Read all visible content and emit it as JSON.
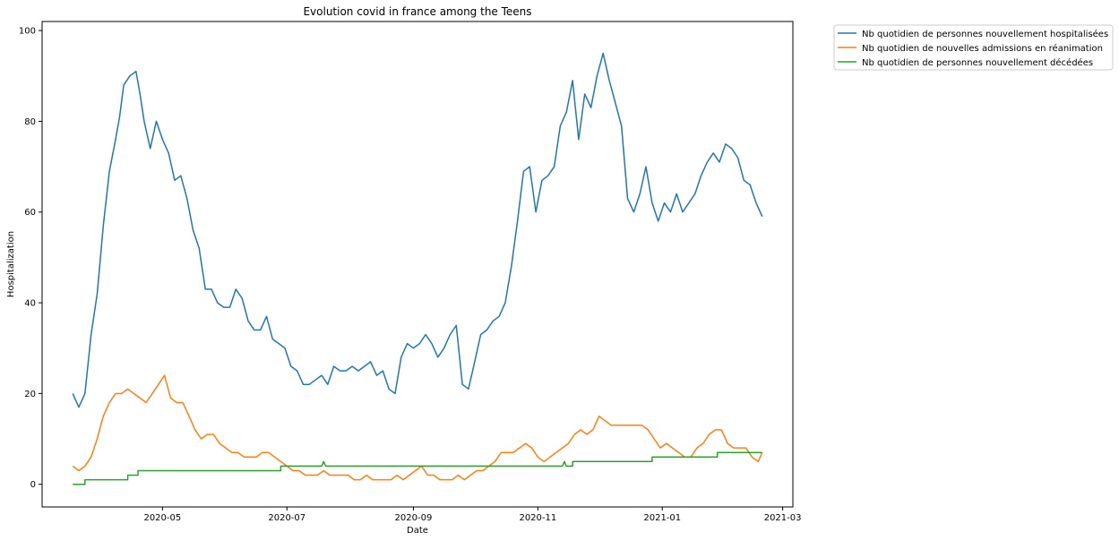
{
  "chart_data": {
    "type": "line",
    "title": "Evolution covid in france among the Teens",
    "xlabel": "Date",
    "ylabel": "Hospitalization",
    "x_start": "2020-03-18",
    "x_end": "2021-02-19",
    "xlim": [
      "2020-03-03",
      "2021-03-06"
    ],
    "ylim": [
      -5,
      102
    ],
    "x_ticks": [
      "2020-05",
      "2020-07",
      "2020-09",
      "2020-11",
      "2021-01",
      "2021-03"
    ],
    "y_ticks": [
      0,
      20,
      40,
      60,
      80,
      100
    ],
    "grid": false,
    "legend_position": "outside-top-right",
    "series": [
      {
        "name": "Nb quotidien de personnes nouvellement hospitalisées",
        "color": "#1f77b4",
        "points": [
          [
            "2020-03-18",
            20
          ],
          [
            "2020-03-21",
            17
          ],
          [
            "2020-03-24",
            20
          ],
          [
            "2020-03-27",
            33
          ],
          [
            "2020-03-30",
            42
          ],
          [
            "2020-04-02",
            57
          ],
          [
            "2020-04-05",
            69
          ],
          [
            "2020-04-08",
            76
          ],
          [
            "2020-04-10",
            81
          ],
          [
            "2020-04-12",
            88
          ],
          [
            "2020-04-15",
            90
          ],
          [
            "2020-04-18",
            91
          ],
          [
            "2020-04-20",
            86
          ],
          [
            "2020-04-22",
            80
          ],
          [
            "2020-04-25",
            74
          ],
          [
            "2020-04-28",
            80
          ],
          [
            "2020-05-01",
            76
          ],
          [
            "2020-05-04",
            73
          ],
          [
            "2020-05-07",
            67
          ],
          [
            "2020-05-10",
            68
          ],
          [
            "2020-05-13",
            63
          ],
          [
            "2020-05-16",
            56
          ],
          [
            "2020-05-19",
            52
          ],
          [
            "2020-05-22",
            43
          ],
          [
            "2020-05-25",
            43
          ],
          [
            "2020-05-28",
            40
          ],
          [
            "2020-05-31",
            39
          ],
          [
            "2020-06-03",
            39
          ],
          [
            "2020-06-06",
            43
          ],
          [
            "2020-06-09",
            41
          ],
          [
            "2020-06-12",
            36
          ],
          [
            "2020-06-15",
            34
          ],
          [
            "2020-06-18",
            34
          ],
          [
            "2020-06-21",
            37
          ],
          [
            "2020-06-24",
            32
          ],
          [
            "2020-06-27",
            31
          ],
          [
            "2020-06-30",
            30
          ],
          [
            "2020-07-03",
            26
          ],
          [
            "2020-07-06",
            25
          ],
          [
            "2020-07-09",
            22
          ],
          [
            "2020-07-12",
            22
          ],
          [
            "2020-07-15",
            23
          ],
          [
            "2020-07-18",
            24
          ],
          [
            "2020-07-21",
            22
          ],
          [
            "2020-07-24",
            26
          ],
          [
            "2020-07-27",
            25
          ],
          [
            "2020-07-30",
            25
          ],
          [
            "2020-08-02",
            26
          ],
          [
            "2020-08-05",
            25
          ],
          [
            "2020-08-08",
            26
          ],
          [
            "2020-08-11",
            27
          ],
          [
            "2020-08-14",
            24
          ],
          [
            "2020-08-17",
            25
          ],
          [
            "2020-08-20",
            21
          ],
          [
            "2020-08-23",
            20
          ],
          [
            "2020-08-26",
            28
          ],
          [
            "2020-08-29",
            31
          ],
          [
            "2020-09-01",
            30
          ],
          [
            "2020-09-04",
            31
          ],
          [
            "2020-09-07",
            33
          ],
          [
            "2020-09-10",
            31
          ],
          [
            "2020-09-13",
            28
          ],
          [
            "2020-09-16",
            30
          ],
          [
            "2020-09-19",
            33
          ],
          [
            "2020-09-22",
            35
          ],
          [
            "2020-09-25",
            22
          ],
          [
            "2020-09-28",
            21
          ],
          [
            "2020-10-01",
            27
          ],
          [
            "2020-10-04",
            33
          ],
          [
            "2020-10-07",
            34
          ],
          [
            "2020-10-10",
            36
          ],
          [
            "2020-10-13",
            37
          ],
          [
            "2020-10-16",
            40
          ],
          [
            "2020-10-19",
            48
          ],
          [
            "2020-10-22",
            58
          ],
          [
            "2020-10-25",
            69
          ],
          [
            "2020-10-28",
            70
          ],
          [
            "2020-10-31",
            60
          ],
          [
            "2020-11-03",
            67
          ],
          [
            "2020-11-06",
            68
          ],
          [
            "2020-11-09",
            70
          ],
          [
            "2020-11-12",
            79
          ],
          [
            "2020-11-15",
            82
          ],
          [
            "2020-11-18",
            89
          ],
          [
            "2020-11-21",
            76
          ],
          [
            "2020-11-24",
            86
          ],
          [
            "2020-11-27",
            83
          ],
          [
            "2020-11-30",
            90
          ],
          [
            "2020-12-03",
            95
          ],
          [
            "2020-12-06",
            89
          ],
          [
            "2020-12-09",
            84
          ],
          [
            "2020-12-12",
            79
          ],
          [
            "2020-12-15",
            63
          ],
          [
            "2020-12-18",
            60
          ],
          [
            "2020-12-21",
            64
          ],
          [
            "2020-12-24",
            70
          ],
          [
            "2020-12-27",
            62
          ],
          [
            "2020-12-30",
            58
          ],
          [
            "2021-01-02",
            62
          ],
          [
            "2021-01-05",
            60
          ],
          [
            "2021-01-08",
            64
          ],
          [
            "2021-01-11",
            60
          ],
          [
            "2021-01-14",
            62
          ],
          [
            "2021-01-17",
            64
          ],
          [
            "2021-01-20",
            68
          ],
          [
            "2021-01-23",
            71
          ],
          [
            "2021-01-26",
            73
          ],
          [
            "2021-01-29",
            71
          ],
          [
            "2021-02-01",
            75
          ],
          [
            "2021-02-04",
            74
          ],
          [
            "2021-02-07",
            72
          ],
          [
            "2021-02-10",
            67
          ],
          [
            "2021-02-13",
            66
          ],
          [
            "2021-02-16",
            62
          ],
          [
            "2021-02-19",
            59
          ]
        ]
      },
      {
        "name": "Nb quotidien de nouvelles admissions en réanimation",
        "color": "#ff7f0e",
        "points": [
          [
            "2020-03-18",
            4
          ],
          [
            "2020-03-21",
            3
          ],
          [
            "2020-03-24",
            4
          ],
          [
            "2020-03-27",
            6
          ],
          [
            "2020-03-30",
            10
          ],
          [
            "2020-04-02",
            15
          ],
          [
            "2020-04-05",
            18
          ],
          [
            "2020-04-08",
            20
          ],
          [
            "2020-04-11",
            20
          ],
          [
            "2020-04-14",
            21
          ],
          [
            "2020-04-17",
            20
          ],
          [
            "2020-04-20",
            19
          ],
          [
            "2020-04-23",
            18
          ],
          [
            "2020-04-26",
            20
          ],
          [
            "2020-04-29",
            22
          ],
          [
            "2020-05-02",
            24
          ],
          [
            "2020-05-05",
            19
          ],
          [
            "2020-05-08",
            18
          ],
          [
            "2020-05-11",
            18
          ],
          [
            "2020-05-14",
            15
          ],
          [
            "2020-05-17",
            12
          ],
          [
            "2020-05-20",
            10
          ],
          [
            "2020-05-23",
            11
          ],
          [
            "2020-05-26",
            11
          ],
          [
            "2020-05-29",
            9
          ],
          [
            "2020-06-01",
            8
          ],
          [
            "2020-06-04",
            7
          ],
          [
            "2020-06-07",
            7
          ],
          [
            "2020-06-10",
            6
          ],
          [
            "2020-06-13",
            6
          ],
          [
            "2020-06-16",
            6
          ],
          [
            "2020-06-19",
            7
          ],
          [
            "2020-06-22",
            7
          ],
          [
            "2020-06-25",
            6
          ],
          [
            "2020-06-28",
            5
          ],
          [
            "2020-07-01",
            4
          ],
          [
            "2020-07-04",
            3
          ],
          [
            "2020-07-07",
            3
          ],
          [
            "2020-07-10",
            2
          ],
          [
            "2020-07-13",
            2
          ],
          [
            "2020-07-16",
            2
          ],
          [
            "2020-07-19",
            3
          ],
          [
            "2020-07-22",
            2
          ],
          [
            "2020-07-25",
            2
          ],
          [
            "2020-07-28",
            2
          ],
          [
            "2020-07-31",
            2
          ],
          [
            "2020-08-03",
            1
          ],
          [
            "2020-08-06",
            1
          ],
          [
            "2020-08-09",
            2
          ],
          [
            "2020-08-12",
            1
          ],
          [
            "2020-08-15",
            1
          ],
          [
            "2020-08-18",
            1
          ],
          [
            "2020-08-21",
            1
          ],
          [
            "2020-08-24",
            2
          ],
          [
            "2020-08-27",
            1
          ],
          [
            "2020-08-30",
            2
          ],
          [
            "2020-09-02",
            3
          ],
          [
            "2020-09-05",
            4
          ],
          [
            "2020-09-08",
            2
          ],
          [
            "2020-09-11",
            2
          ],
          [
            "2020-09-14",
            1
          ],
          [
            "2020-09-17",
            1
          ],
          [
            "2020-09-20",
            1
          ],
          [
            "2020-09-23",
            2
          ],
          [
            "2020-09-26",
            1
          ],
          [
            "2020-09-29",
            2
          ],
          [
            "2020-10-02",
            3
          ],
          [
            "2020-10-05",
            3
          ],
          [
            "2020-10-08",
            4
          ],
          [
            "2020-10-11",
            5
          ],
          [
            "2020-10-14",
            7
          ],
          [
            "2020-10-17",
            7
          ],
          [
            "2020-10-20",
            7
          ],
          [
            "2020-10-23",
            8
          ],
          [
            "2020-10-26",
            9
          ],
          [
            "2020-10-29",
            8
          ],
          [
            "2020-11-01",
            6
          ],
          [
            "2020-11-04",
            5
          ],
          [
            "2020-11-07",
            6
          ],
          [
            "2020-11-10",
            7
          ],
          [
            "2020-11-13",
            8
          ],
          [
            "2020-11-16",
            9
          ],
          [
            "2020-11-19",
            11
          ],
          [
            "2020-11-22",
            12
          ],
          [
            "2020-11-25",
            11
          ],
          [
            "2020-11-28",
            12
          ],
          [
            "2020-12-01",
            15
          ],
          [
            "2020-12-04",
            14
          ],
          [
            "2020-12-07",
            13
          ],
          [
            "2020-12-10",
            13
          ],
          [
            "2020-12-13",
            13
          ],
          [
            "2020-12-16",
            13
          ],
          [
            "2020-12-19",
            13
          ],
          [
            "2020-12-22",
            13
          ],
          [
            "2020-12-25",
            12
          ],
          [
            "2020-12-28",
            10
          ],
          [
            "2020-12-31",
            8
          ],
          [
            "2021-01-03",
            9
          ],
          [
            "2021-01-06",
            8
          ],
          [
            "2021-01-09",
            7
          ],
          [
            "2021-01-12",
            6
          ],
          [
            "2021-01-15",
            6
          ],
          [
            "2021-01-18",
            8
          ],
          [
            "2021-01-21",
            9
          ],
          [
            "2021-01-24",
            11
          ],
          [
            "2021-01-27",
            12
          ],
          [
            "2021-01-30",
            12
          ],
          [
            "2021-02-02",
            9
          ],
          [
            "2021-02-05",
            8
          ],
          [
            "2021-02-08",
            8
          ],
          [
            "2021-02-11",
            8
          ],
          [
            "2021-02-14",
            6
          ],
          [
            "2021-02-17",
            5
          ],
          [
            "2021-02-19",
            7
          ]
        ]
      },
      {
        "name": "Nb quotidien de personnes nouvellement décédées",
        "color": "#2ca02c",
        "points": [
          [
            "2020-03-18",
            0
          ],
          [
            "2020-03-24",
            0
          ],
          [
            "2020-03-24",
            1
          ],
          [
            "2020-04-14",
            1
          ],
          [
            "2020-04-14",
            2
          ],
          [
            "2020-04-19",
            2
          ],
          [
            "2020-04-19",
            3
          ],
          [
            "2020-06-28",
            3
          ],
          [
            "2020-06-28",
            4
          ],
          [
            "2020-07-18",
            4
          ],
          [
            "2020-07-19",
            5
          ],
          [
            "2020-07-20",
            4
          ],
          [
            "2020-11-13",
            4
          ],
          [
            "2020-11-14",
            5
          ],
          [
            "2020-11-15",
            4
          ],
          [
            "2020-11-18",
            4
          ],
          [
            "2020-11-18",
            5
          ],
          [
            "2020-12-27",
            5
          ],
          [
            "2020-12-27",
            6
          ],
          [
            "2021-01-28",
            6
          ],
          [
            "2021-01-28",
            7
          ],
          [
            "2021-02-19",
            7
          ]
        ]
      }
    ]
  }
}
